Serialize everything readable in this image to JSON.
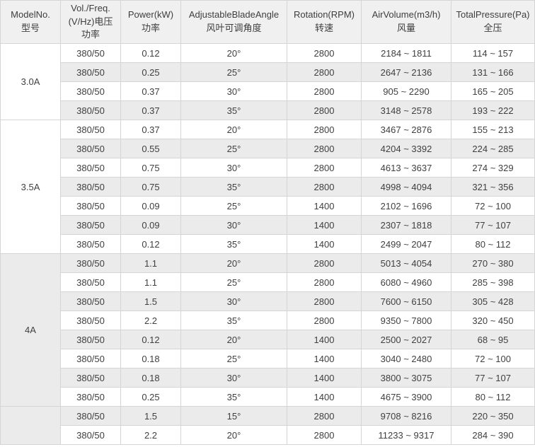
{
  "table": {
    "columns": [
      {
        "id": "model",
        "label": "ModelNo.\n型号"
      },
      {
        "id": "voltage",
        "label": "Vol./Freq.\n(V/Hz)电压\n功率"
      },
      {
        "id": "power",
        "label": "Power(kW)\n功率"
      },
      {
        "id": "angle",
        "label": "AdjustableBladeAngle\n风叶可调角度"
      },
      {
        "id": "rotation",
        "label": "Rotation(RPM)\n转速"
      },
      {
        "id": "airvolume",
        "label": "AirVolume(m3/h)\n风量"
      },
      {
        "id": "pressure",
        "label": "TotalPressure(Pa)\n全压"
      }
    ],
    "groups": [
      {
        "model": "3.0A",
        "rows": [
          [
            "380/50",
            "0.12",
            "20°",
            "2800",
            "2184 ~ 1811",
            "114 ~ 157"
          ],
          [
            "380/50",
            "0.25",
            "25°",
            "2800",
            "2647 ~ 2136",
            "131 ~ 166"
          ],
          [
            "380/50",
            "0.37",
            "30°",
            "2800",
            "905 ~ 2290",
            "165 ~ 205"
          ],
          [
            "380/50",
            "0.37",
            "35°",
            "2800",
            "3148 ~ 2578",
            "193 ~ 222"
          ]
        ]
      },
      {
        "model": "3.5A",
        "rows": [
          [
            "380/50",
            "0.37",
            "20°",
            "2800",
            "3467 ~ 2876",
            "155 ~ 213"
          ],
          [
            "380/50",
            "0.55",
            "25°",
            "2800",
            "4204 ~ 3392",
            "224 ~ 285"
          ],
          [
            "380/50",
            "0.75",
            "30°",
            "2800",
            "4613 ~ 3637",
            "274 ~ 329"
          ],
          [
            "380/50",
            "0.75",
            "35°",
            "2800",
            "4998 ~ 4094",
            "321 ~ 356"
          ],
          [
            "380/50",
            "0.09",
            "25°",
            "1400",
            "2102 ~ 1696",
            "72 ~ 100"
          ],
          [
            "380/50",
            "0.09",
            "30°",
            "1400",
            "2307 ~ 1818",
            "77 ~ 107"
          ],
          [
            "380/50",
            "0.12",
            "35°",
            "1400",
            "2499 ~ 2047",
            "80 ~ 112"
          ]
        ]
      },
      {
        "model": "4A",
        "rows": [
          [
            "380/50",
            "1.1",
            "20°",
            "2800",
            "5013 ~ 4054",
            "270 ~ 380"
          ],
          [
            "380/50",
            "1.1",
            "25°",
            "2800",
            "6080 ~ 4960",
            "285 ~ 398"
          ],
          [
            "380/50",
            "1.5",
            "30°",
            "2800",
            "7600 ~ 6150",
            "305 ~ 428"
          ],
          [
            "380/50",
            "2.2",
            "35°",
            "2800",
            "9350 ~ 7800",
            "320 ~ 450"
          ],
          [
            "380/50",
            "0.12",
            "20°",
            "1400",
            "2500 ~ 2027",
            "68 ~ 95"
          ],
          [
            "380/50",
            "0.18",
            "25°",
            "1400",
            "3040 ~ 2480",
            "72 ~ 100"
          ],
          [
            "380/50",
            "0.18",
            "30°",
            "1400",
            "3800 ~ 3075",
            "77 ~ 107"
          ],
          [
            "380/50",
            "0.25",
            "35°",
            "1400",
            "4675 ~ 3900",
            "80 ~ 112"
          ]
        ]
      },
      {
        "model": "",
        "rows": [
          [
            "380/50",
            "1.5",
            "15°",
            "2800",
            "9708 ~ 8216",
            "220 ~ 350"
          ],
          [
            "380/50",
            "2.2",
            "20°",
            "2800",
            "11233 ~ 9317",
            "284 ~ 390"
          ]
        ]
      }
    ]
  },
  "colors": {
    "stripe": "#ebebeb",
    "header_bg": "#f0f0f0",
    "border": "#d5d5d5",
    "text": "#404040"
  }
}
